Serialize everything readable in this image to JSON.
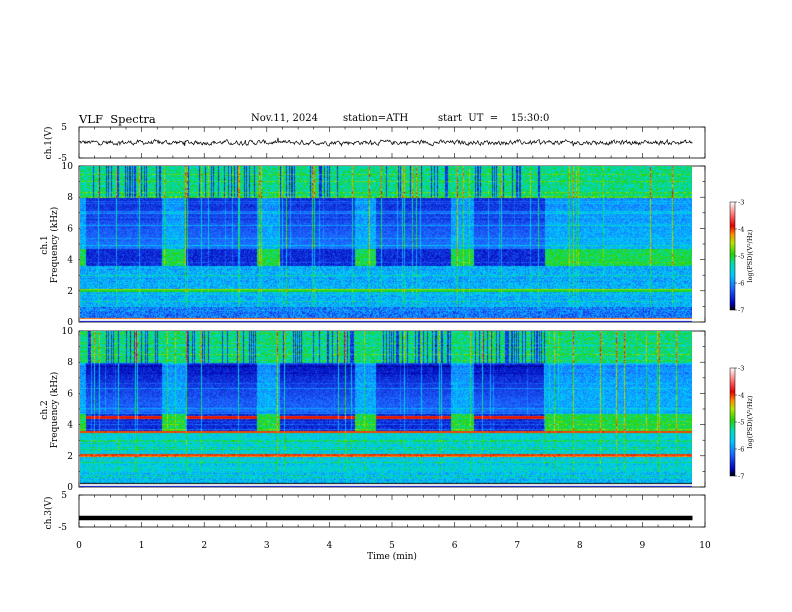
{
  "header": {
    "title": "VLF  Spectra",
    "date": "Nov.11, 2024",
    "station": "station=ATH",
    "start_ut": "start  UT  =    15:30:0"
  },
  "colors": {
    "cmap_stops": [
      "#000000",
      "#0000cc",
      "#0a5aff",
      "#00ccff",
      "#00e6b4",
      "#2ad200",
      "#e6e600",
      "#ff5a00",
      "#d20000",
      "#ffffff"
    ],
    "trace": "#000000"
  },
  "chart_data": [
    {
      "type": "line",
      "panel": "ch1-waveform",
      "ylabel": "ch.1(V)",
      "ylim": [
        -5,
        5
      ],
      "yticks": [
        "5",
        "-5"
      ],
      "xlim": [
        0,
        10
      ],
      "description_series": "noisy waveform around 0 V",
      "series": [
        {
          "values_range": [
            -1,
            1
          ]
        }
      ]
    },
    {
      "type": "heatmap",
      "panel": "ch1-spectrogram",
      "ylabel": "ch.1\nFrequency  (kHz)",
      "ylim": [
        0,
        10
      ],
      "yticks": [
        "0",
        "2",
        "4",
        "6",
        "8",
        "10"
      ],
      "xlim": [
        0,
        10
      ],
      "colorbar": {
        "label": "log(PSD)(V²/Hz)",
        "range": [
          -7,
          -3
        ],
        "ticks": [
          "-3",
          "-4",
          "-5",
          "-6",
          "-7"
        ]
      }
    },
    {
      "type": "heatmap",
      "panel": "ch2-spectrogram",
      "ylabel": "ch.2\nFrequency  (kHz)",
      "ylim": [
        0,
        10
      ],
      "yticks": [
        "0",
        "2",
        "4",
        "6",
        "8",
        "10"
      ],
      "xlim": [
        0,
        10
      ],
      "colorbar": {
        "label": "log(PSD)(V²/Hz)",
        "range": [
          -7,
          -3
        ],
        "ticks": [
          "-3",
          "-4",
          "-5",
          "-6",
          "-7"
        ]
      }
    },
    {
      "type": "line",
      "panel": "ch3-waveform",
      "ylabel": "ch.3(V)",
      "ylim": [
        -5,
        5
      ],
      "yticks": [
        "5",
        "-5"
      ],
      "xlim": [
        0,
        10
      ],
      "series": [
        {
          "values": [
            -2.2,
            -2.2
          ]
        }
      ]
    }
  ],
  "xaxis": {
    "label": "Time  (min)",
    "ticks": [
      "0",
      "1",
      "2",
      "3",
      "4",
      "5",
      "6",
      "7",
      "8",
      "9",
      "10"
    ],
    "data_end": 9.8
  },
  "transmitter_blocks": {
    "note": "periodic station-on intervals (minutes)",
    "intervals": [
      [
        0,
        0.08
      ],
      [
        1.3,
        1.68
      ],
      [
        2.82,
        3.18
      ],
      [
        4.38,
        4.72
      ],
      [
        5.92,
        6.28
      ],
      [
        7.42,
        9.8
      ]
    ]
  }
}
